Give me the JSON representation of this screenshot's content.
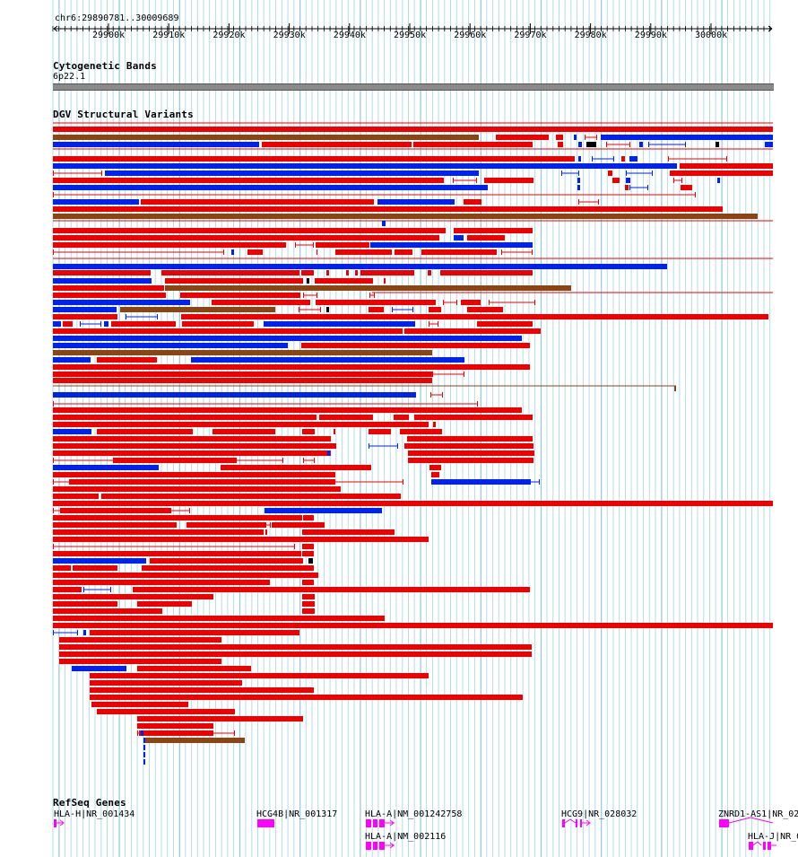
{
  "ruler": {
    "position": "chr6:29890781..30009689",
    "ticks": [
      "29900k",
      "29910k",
      "29920k",
      "29930k",
      "29940k",
      "29950k",
      "29960k",
      "29970k",
      "29980k",
      "29990k",
      "30000k"
    ]
  },
  "tracks": {
    "cytobands": {
      "title": "Cytogenetic Bands",
      "band_label": "6p22.1"
    },
    "dgv": {
      "title": "DGV Structural Variants",
      "colors": {
        "loss": "#ee0000",
        "gain": "#0022ee",
        "both": "#8b4513",
        "other": "#000000"
      }
    },
    "refseq": {
      "title": "RefSeq Genes",
      "gene_color": "#ff00ff",
      "genes": [
        {
          "label": "HLA-H|NR_001434"
        },
        {
          "label": "HCG4B|NR_001317"
        },
        {
          "label": "HLA-A|NM_001242758"
        },
        {
          "label": "HLA-A|NM_002116"
        },
        {
          "label": "HCG9|NR_028032"
        },
        {
          "label": "ZNRD1-AS1|NR_02"
        },
        {
          "label": "HLA-J|NR_0"
        }
      ]
    }
  }
}
